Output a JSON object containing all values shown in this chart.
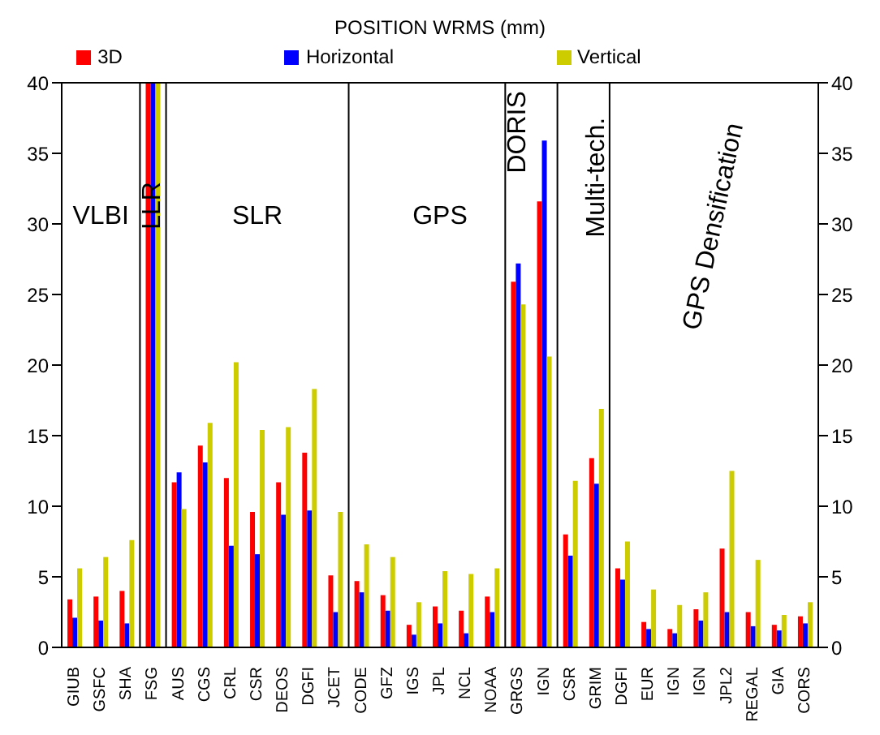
{
  "chart_data": {
    "type": "bar",
    "title": "POSITION WRMS (mm)",
    "categories": [
      "GIUB",
      "GSFC",
      "SHA",
      "FSG",
      "AUS",
      "CGS",
      "CRL",
      "CSR",
      "DEOS",
      "DGFI",
      "JCET",
      "CODE",
      "GFZ",
      "IGS",
      "JPL",
      "NCL",
      "NOAA",
      "GRGS",
      "IGN",
      "CSR",
      "GRIM",
      "DGFI",
      "EUR",
      "IGN",
      "IGN",
      "JPL2",
      "REGAL",
      "GIA",
      "CORS"
    ],
    "series": [
      {
        "name": "3D",
        "color": "#ff0000",
        "values": [
          3.4,
          3.6,
          4.0,
          40,
          11.7,
          14.3,
          12.0,
          9.6,
          11.7,
          13.8,
          5.1,
          4.7,
          3.7,
          1.6,
          2.9,
          2.6,
          3.6,
          25.9,
          31.6,
          8.0,
          13.4,
          5.6,
          1.8,
          1.3,
          2.7,
          7.0,
          2.5,
          1.6,
          2.2
        ]
      },
      {
        "name": "Horizontal",
        "color": "#0000ff",
        "values": [
          2.1,
          1.9,
          1.7,
          40,
          12.4,
          13.1,
          7.2,
          6.6,
          9.4,
          9.7,
          2.5,
          3.9,
          2.6,
          0.9,
          1.7,
          1.0,
          2.5,
          27.2,
          35.9,
          6.5,
          11.6,
          4.8,
          1.3,
          1.0,
          1.9,
          2.5,
          1.5,
          1.2,
          1.7
        ]
      },
      {
        "name": "Vertical",
        "color": "#cccc00",
        "values": [
          5.6,
          6.4,
          7.6,
          40,
          9.8,
          15.9,
          20.2,
          15.4,
          15.6,
          18.3,
          9.6,
          7.3,
          6.4,
          3.2,
          5.4,
          5.2,
          5.6,
          24.3,
          20.6,
          11.8,
          16.9,
          7.5,
          4.1,
          3.0,
          3.9,
          12.5,
          6.2,
          2.3,
          3.2
        ]
      }
    ],
    "ylim": [
      0,
      40
    ],
    "yticks": [
      0,
      5,
      10,
      15,
      20,
      25,
      30,
      35,
      40
    ],
    "y2lim": [
      0,
      40
    ],
    "y2ticks": [
      0,
      5,
      10,
      15,
      20,
      25,
      30,
      35,
      40
    ],
    "annotations": [
      "VLBI",
      "LLR",
      "SLR",
      "GPS",
      "DORIS",
      "Multi-tech.",
      "GPS Densification"
    ],
    "grid": false,
    "legend": "top"
  }
}
